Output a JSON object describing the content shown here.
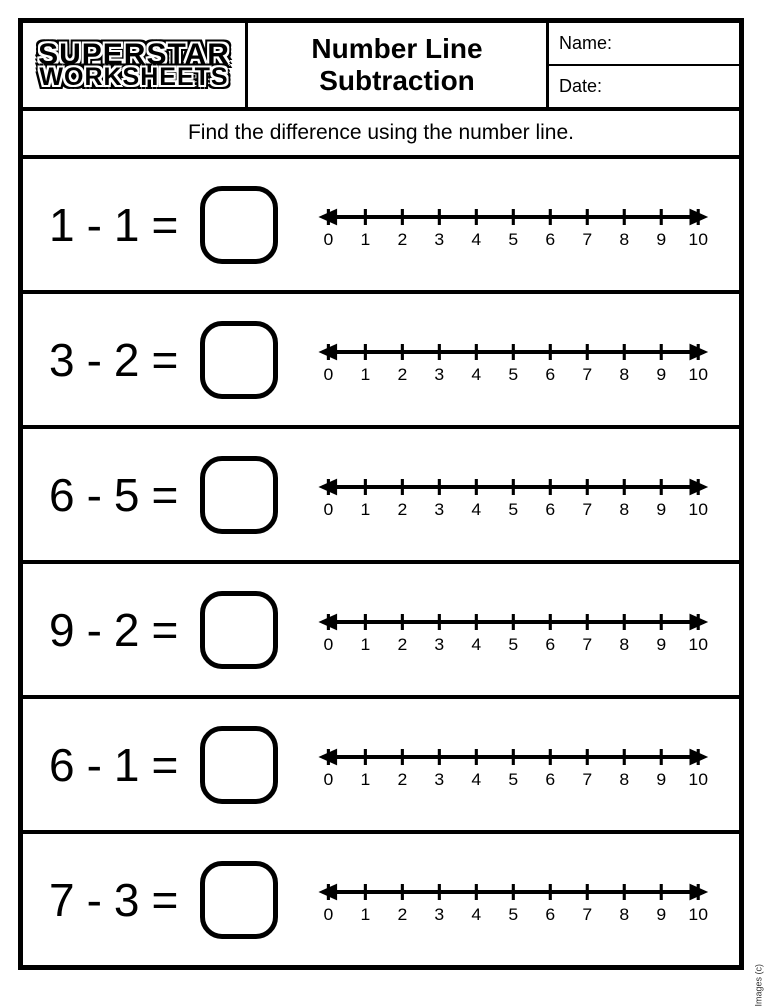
{
  "logo": {
    "line1": "SUPERSTAR",
    "line2": "WORKSHEETS"
  },
  "title": {
    "line1": "Number Line",
    "line2": "Subtraction"
  },
  "meta": {
    "name_label": "Name:",
    "date_label": "Date:"
  },
  "instructions": "Find the difference using the number line.",
  "numberline": {
    "min": 0,
    "max": 10,
    "labels": [
      "0",
      "1",
      "2",
      "3",
      "4",
      "5",
      "6",
      "7",
      "8",
      "9",
      "10"
    ],
    "line_color": "#000000",
    "line_width": 4,
    "tick_width": 3,
    "tick_height": 16,
    "arrow_size": 14,
    "label_fontsize": 17
  },
  "problems": [
    {
      "a": "1",
      "op": "-",
      "b": "1",
      "eq": "="
    },
    {
      "a": "3",
      "op": "-",
      "b": "2",
      "eq": "="
    },
    {
      "a": "6",
      "op": "-",
      "b": "5",
      "eq": "="
    },
    {
      "a": "9",
      "op": "-",
      "b": "2",
      "eq": "="
    },
    {
      "a": "6",
      "op": "-",
      "b": "1",
      "eq": "="
    },
    {
      "a": "7",
      "op": "-",
      "b": "3",
      "eq": "="
    }
  ],
  "copyright": "Images (c)"
}
